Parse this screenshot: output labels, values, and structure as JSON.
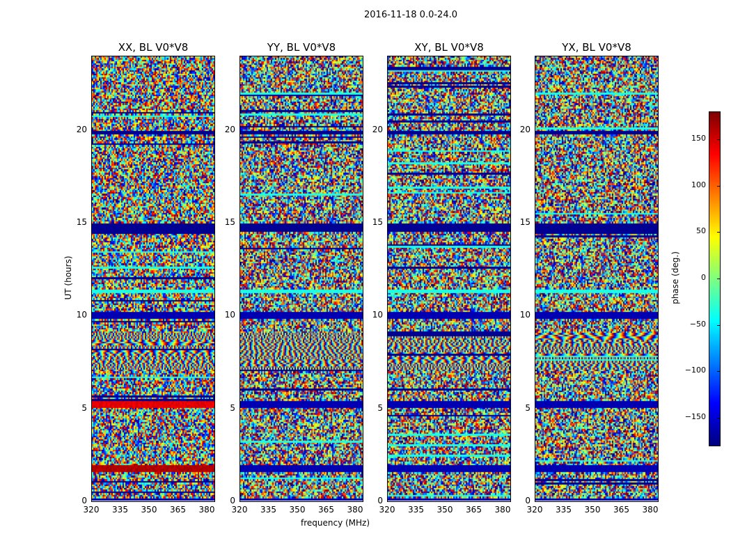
{
  "chart_data": {
    "type": "heatmap",
    "title": "2016-11-18 0.0-24.0",
    "xlabel": "frequency (MHz)",
    "ylabel": "UT (hours)",
    "xlim": [
      320,
      384
    ],
    "ylim": [
      0,
      24
    ],
    "xticks": [
      "320",
      "335",
      "350",
      "365",
      "380"
    ],
    "yticks": [
      "0",
      "5",
      "10",
      "15",
      "20"
    ],
    "panels": [
      {
        "title": "XX, BL V0*V8"
      },
      {
        "title": "YY, BL V0*V8"
      },
      {
        "title": "XY, BL V0*V8"
      },
      {
        "title": "YX, BL V0*V8"
      }
    ],
    "colorbar": {
      "label": "phase (deg.)",
      "range": [
        -180,
        180
      ],
      "ticks": [
        "150",
        "100",
        "50",
        "0",
        "−50",
        "−100",
        "−150"
      ],
      "tick_values": [
        150,
        100,
        50,
        0,
        -50,
        -100,
        -150
      ],
      "colormap": "jet"
    },
    "values": "noisy phase (random, -180..180) with flagged bands near UT 1.5-2, 5-5.5, 9.8-10.2, 11.3, 14.5-15, 19.8"
  }
}
